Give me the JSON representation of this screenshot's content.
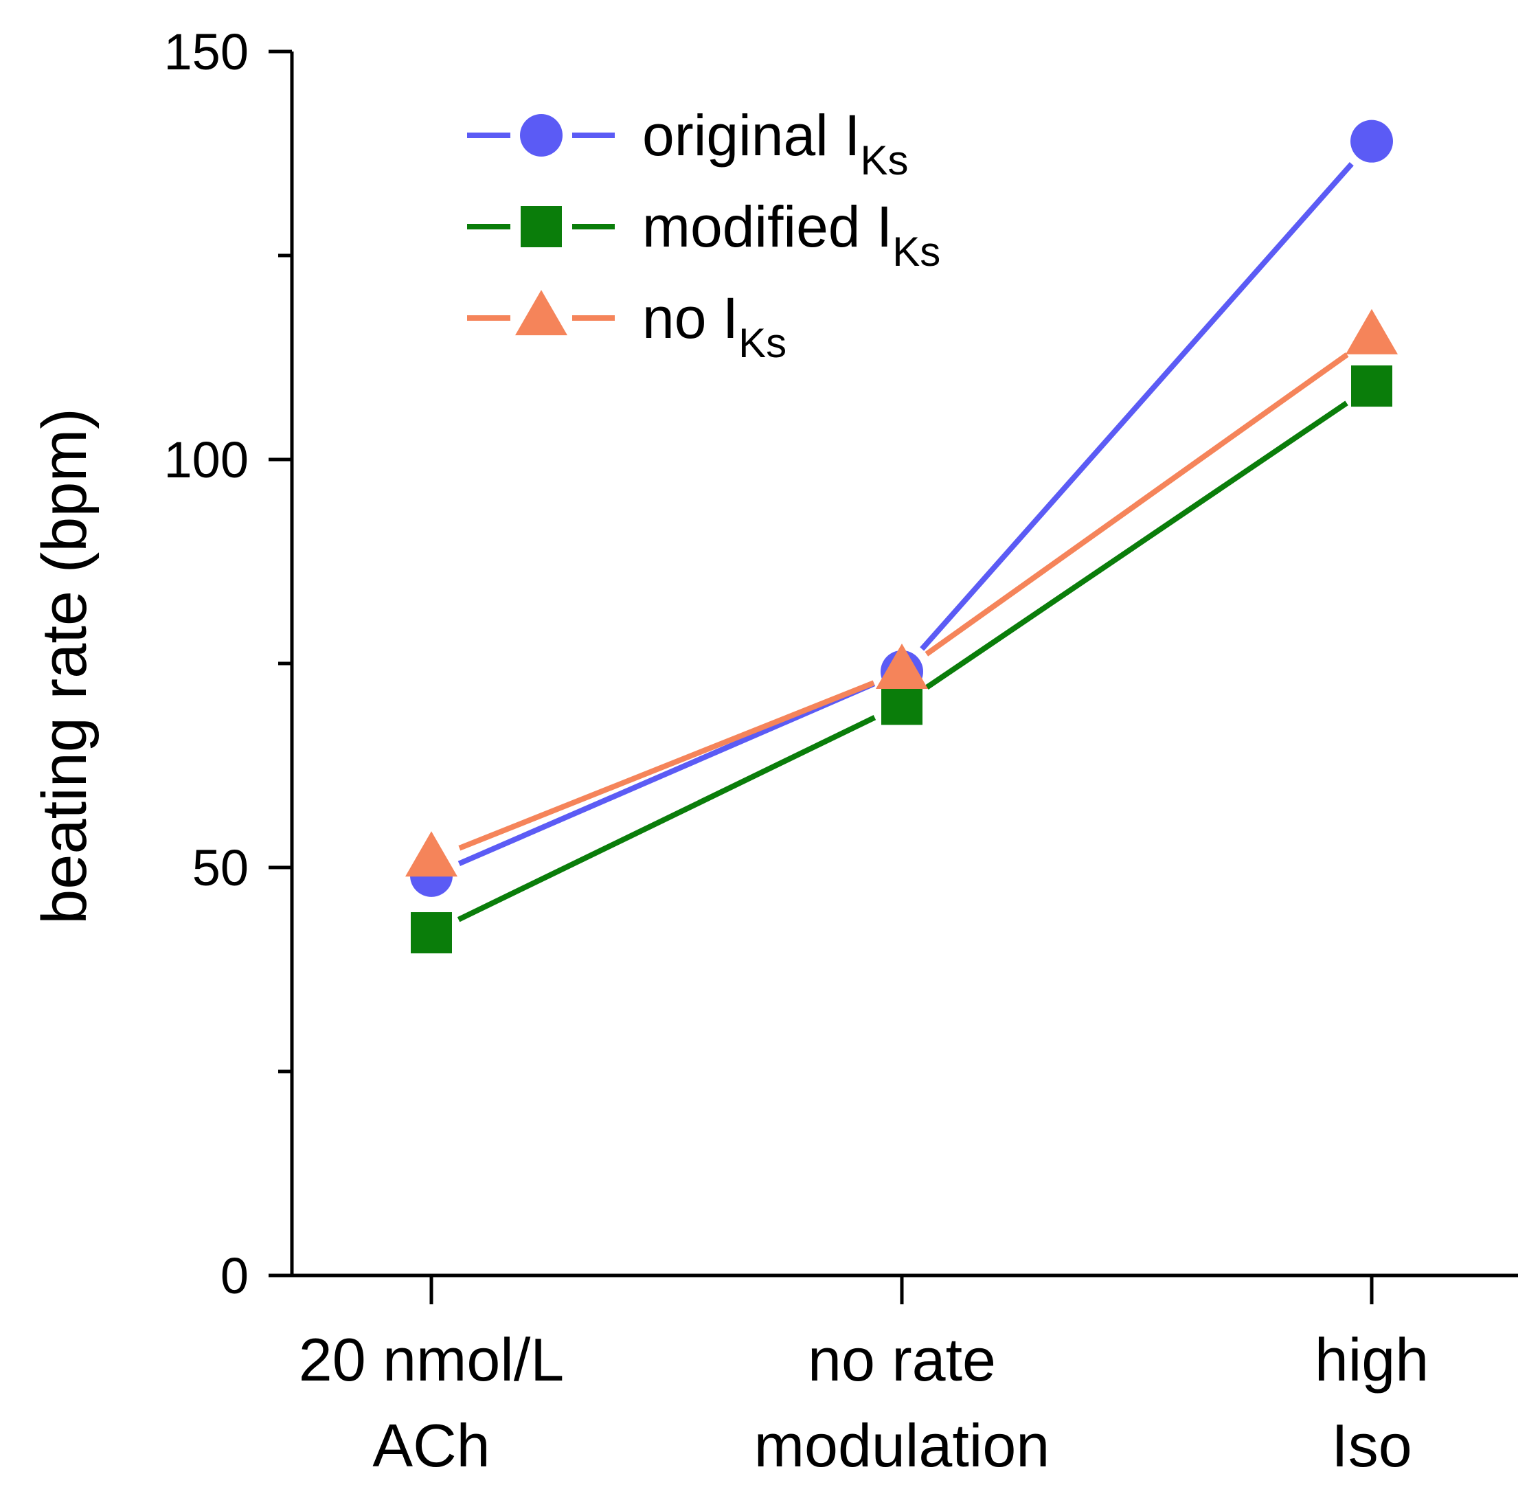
{
  "chart_data": {
    "type": "line",
    "title": "",
    "xlabel": "",
    "ylabel": "beating rate (bpm)",
    "ylim": [
      0,
      150
    ],
    "yticks": [
      0,
      50,
      100,
      150
    ],
    "categories": [
      {
        "line1": "20 nmol/L",
        "line2": "ACh"
      },
      {
        "line1": "no rate",
        "line2": "modulation"
      },
      {
        "line1": "high",
        "line2": "Iso"
      }
    ],
    "series": [
      {
        "name": "original",
        "sub": "Ks",
        "prefix": "I",
        "marker": "circle",
        "color": "#5b5bf5",
        "values": [
          49,
          74,
          139
        ]
      },
      {
        "name": "modified",
        "sub": "Ks",
        "prefix": "I",
        "marker": "square",
        "color": "#0a7d0a",
        "values": [
          42,
          70,
          109
        ]
      },
      {
        "name": "no",
        "sub": "Ks",
        "prefix": "I",
        "marker": "triangle",
        "color": "#f5845a",
        "values": [
          51,
          74,
          115
        ]
      }
    ],
    "legend_position": "top-left",
    "grid": false
  }
}
